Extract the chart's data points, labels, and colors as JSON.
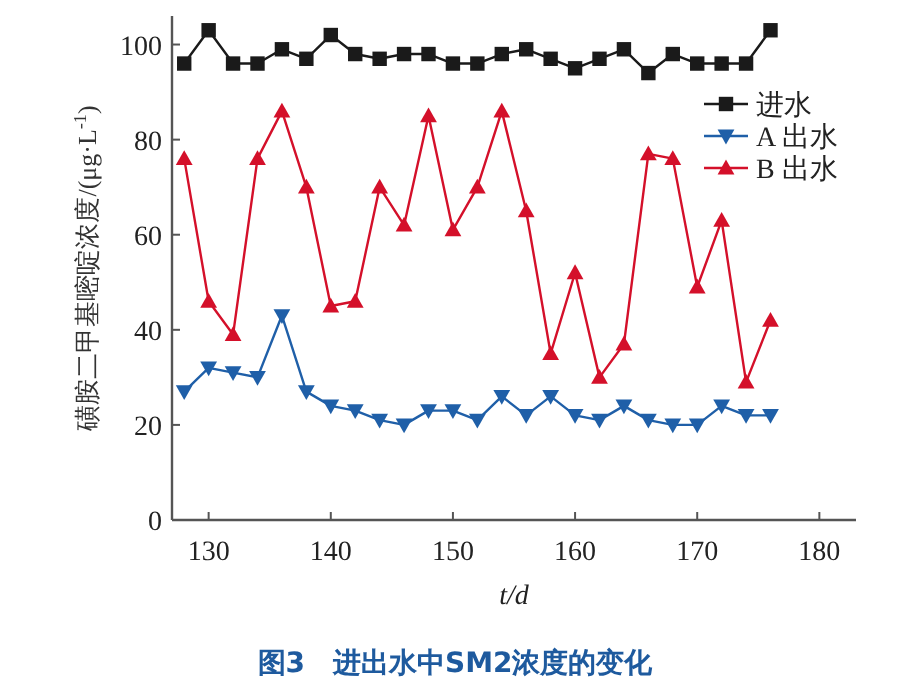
{
  "chart_data": {
    "type": "line",
    "title": "图3　进出水中SM2浓度的变化",
    "xlabel": "t/d",
    "ylabel": "磺胺二甲基嘧啶浓度/(μg·L$^{-1}$)",
    "x": [
      128,
      130,
      132,
      134,
      136,
      138,
      140,
      142,
      144,
      146,
      148,
      150,
      152,
      154,
      156,
      158,
      160,
      162,
      164,
      166,
      168,
      170,
      172,
      174,
      176
    ],
    "series": [
      {
        "name": "进水",
        "color": "#1a1a1a",
        "marker": "square",
        "values": [
          96,
          103,
          96,
          96,
          99,
          97,
          102,
          98,
          97,
          98,
          98,
          96,
          96,
          98,
          99,
          97,
          95,
          97,
          99,
          94,
          98,
          96,
          96,
          96,
          103
        ]
      },
      {
        "name": "A 出水",
        "color": "#1f5fa8",
        "marker": "triangle-down",
        "values": [
          27,
          32,
          31,
          30,
          43,
          27,
          24,
          23,
          21,
          20,
          23,
          23,
          21,
          26,
          22,
          26,
          22,
          21,
          24,
          21,
          20,
          20,
          24,
          22,
          22
        ]
      },
      {
        "name": "B 出水",
        "color": "#d4102a",
        "marker": "triangle",
        "values": [
          76,
          46,
          39,
          76,
          86,
          70,
          45,
          46,
          70,
          62,
          85,
          61,
          70,
          86,
          65,
          35,
          52,
          30,
          37,
          77,
          76,
          49,
          63,
          29,
          42
        ]
      }
    ],
    "xlim": [
      127,
      183
    ],
    "xticks": [
      130,
      140,
      150,
      160,
      170,
      180
    ],
    "ylim": [
      0,
      106
    ],
    "yticks": [
      0,
      20,
      40,
      60,
      80,
      100
    ],
    "grid": false,
    "legend": "top right"
  }
}
